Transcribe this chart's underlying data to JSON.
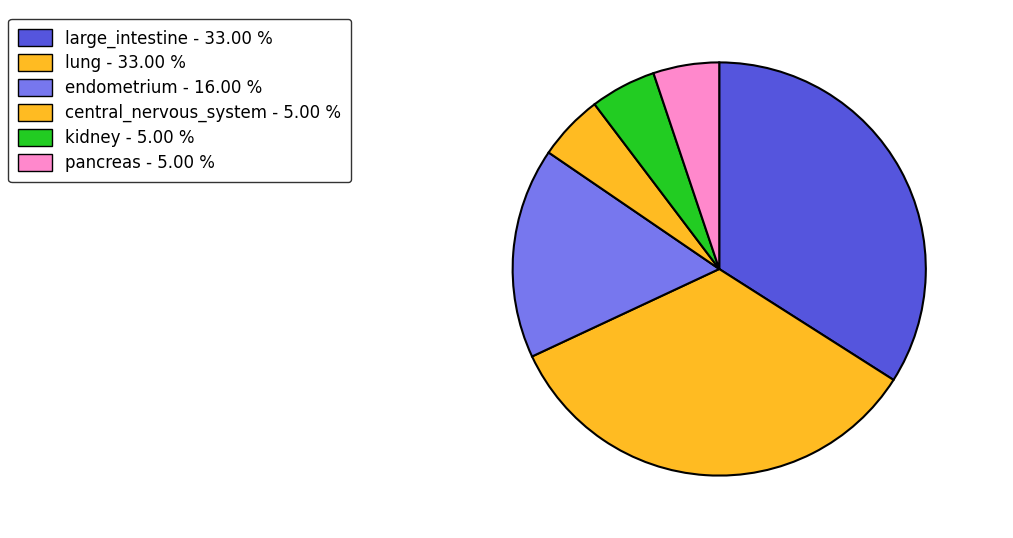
{
  "labels": [
    "large_intestine",
    "lung",
    "endometrium",
    "central_nervous_system",
    "kidney",
    "pancreas"
  ],
  "values": [
    33,
    33,
    16,
    5,
    5,
    5
  ],
  "colors": [
    "#5555dd",
    "#ffbb22",
    "#7777ee",
    "#ffbb22",
    "#22cc22",
    "#ff88cc"
  ],
  "legend_labels": [
    "large_intestine - 33.00 %",
    "lung - 33.00 %",
    "endometrium - 16.00 %",
    "central_nervous_system - 5.00 %",
    "kidney - 5.00 %",
    "pancreas - 5.00 %"
  ],
  "legend_colors": [
    "#5555dd",
    "#ffbb22",
    "#7777ee",
    "#ffbb22",
    "#22cc22",
    "#ff88cc"
  ],
  "startangle": 90,
  "figsize": [
    10.13,
    5.38
  ],
  "dpi": 100
}
